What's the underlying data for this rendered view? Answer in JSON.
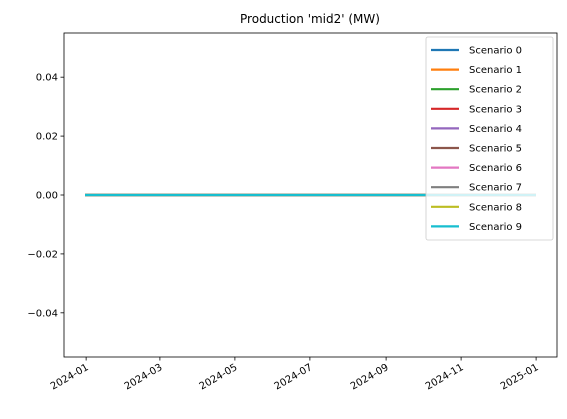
{
  "chart_data": {
    "type": "line",
    "title": "Production 'mid2' (MW)",
    "xlabel": "",
    "ylabel": "",
    "x": [
      "2024-01-01",
      "2024-12-31"
    ],
    "x_range": [
      "2023-12-14",
      "2025-01-18"
    ],
    "x_ticks": [
      "2024-01",
      "2024-03",
      "2024-05",
      "2024-07",
      "2024-09",
      "2024-11",
      "2025-01"
    ],
    "ylim": [
      -0.055,
      0.055
    ],
    "y_ticks": [
      "0.04",
      "0.02",
      "0.00",
      "−0.02",
      "−0.04"
    ],
    "y_tick_values": [
      0.04,
      0.02,
      0.0,
      -0.02,
      -0.04
    ],
    "grid": false,
    "legend_position": "upper-right",
    "series": [
      {
        "name": "Scenario 0",
        "color": "#1f77b4",
        "values": [
          0,
          0
        ]
      },
      {
        "name": "Scenario 1",
        "color": "#ff7f0e",
        "values": [
          0,
          0
        ]
      },
      {
        "name": "Scenario 2",
        "color": "#2ca02c",
        "values": [
          0,
          0
        ]
      },
      {
        "name": "Scenario 3",
        "color": "#d62728",
        "values": [
          0,
          0
        ]
      },
      {
        "name": "Scenario 4",
        "color": "#9467bd",
        "values": [
          0,
          0
        ]
      },
      {
        "name": "Scenario 5",
        "color": "#8c564b",
        "values": [
          0,
          0
        ]
      },
      {
        "name": "Scenario 6",
        "color": "#e377c2",
        "values": [
          0,
          0
        ]
      },
      {
        "name": "Scenario 7",
        "color": "#7f7f7f",
        "values": [
          0,
          0
        ]
      },
      {
        "name": "Scenario 8",
        "color": "#bcbd22",
        "values": [
          0,
          0
        ]
      },
      {
        "name": "Scenario 9",
        "color": "#17becf",
        "values": [
          0,
          0
        ]
      }
    ]
  }
}
